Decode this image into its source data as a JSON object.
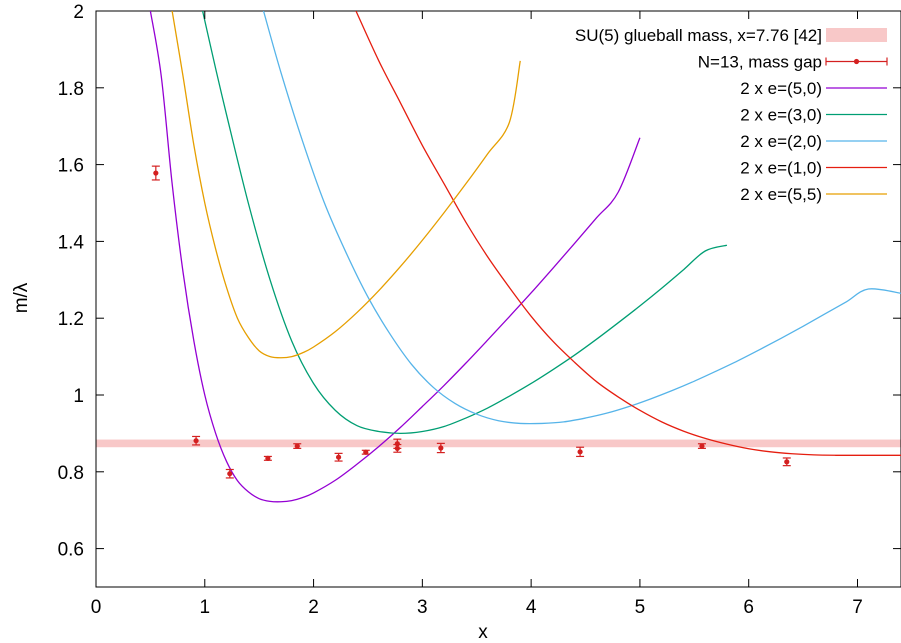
{
  "chart_data": {
    "type": "line",
    "xlabel": "x",
    "ylabel": "m/λ",
    "xlim": [
      0,
      7.4
    ],
    "ylim": [
      0.5,
      2.0
    ],
    "xticks": [
      0,
      1,
      2,
      3,
      4,
      5,
      6,
      7
    ],
    "yticks": [
      0.6,
      0.8,
      1.0,
      1.2,
      1.4,
      1.6,
      1.8,
      2.0
    ],
    "xtick_labels": [
      "0",
      "1",
      "2",
      "3",
      "4",
      "5",
      "6",
      "7"
    ],
    "ytick_labels": [
      "0.6",
      "0.8",
      "1",
      "1.2",
      "1.4",
      "1.6",
      "1.8",
      "2"
    ],
    "legend_position": "top-right",
    "band": {
      "name": "SU(5) glueball mass, x=7.76 [42]",
      "ymin": 0.864,
      "ymax": 0.884,
      "color": "#f8c8c8"
    },
    "points": {
      "name": "N=13, mass gap",
      "color": "#d42020",
      "x": [
        0.55,
        0.92,
        1.23,
        1.58,
        1.85,
        2.23,
        2.48,
        2.77,
        2.77,
        3.17,
        4.45,
        5.57,
        6.35
      ],
      "y": [
        1.578,
        0.881,
        0.795,
        0.835,
        0.867,
        0.838,
        0.851,
        0.873,
        0.861,
        0.862,
        0.852,
        0.867,
        0.826
      ],
      "err": [
        0.018,
        0.011,
        0.011,
        0.005,
        0.006,
        0.01,
        0.005,
        0.012,
        0.01,
        0.012,
        0.012,
        0.006,
        0.01
      ]
    },
    "series": [
      {
        "name": "2 x e=(5,0)",
        "color": "#9400d3",
        "x": [
          0.5,
          0.6,
          0.7,
          0.8,
          0.9,
          1.0,
          1.1,
          1.2,
          1.3,
          1.4,
          1.5,
          1.6,
          1.7,
          1.8,
          1.9,
          2.0,
          2.2,
          2.4,
          2.6,
          2.8,
          3.0,
          3.2,
          3.4,
          3.6,
          3.8,
          4.0,
          4.2,
          4.4,
          4.6,
          4.8,
          5.0
        ],
        "y": [
          2.0,
          1.83,
          1.55,
          1.32,
          1.14,
          1.0,
          0.9,
          0.827,
          0.777,
          0.748,
          0.73,
          0.723,
          0.722,
          0.725,
          0.733,
          0.745,
          0.778,
          0.82,
          0.866,
          0.916,
          0.97,
          1.025,
          1.083,
          1.143,
          1.204,
          1.266,
          1.33,
          1.395,
          1.461,
          1.528,
          1.67
        ]
      },
      {
        "name": "2 x e=(3,0)",
        "color": "#009e73",
        "x": [
          0.98,
          1.1,
          1.2,
          1.4,
          1.6,
          1.8,
          2.0,
          2.2,
          2.4,
          2.6,
          2.8,
          3.0,
          3.2,
          3.4,
          3.6,
          3.8,
          4.0,
          4.2,
          4.4,
          4.6,
          4.8,
          5.0,
          5.2,
          5.4,
          5.6,
          5.8
        ],
        "y": [
          2.0,
          1.85,
          1.73,
          1.5,
          1.3,
          1.14,
          1.03,
          0.96,
          0.92,
          0.905,
          0.9,
          0.905,
          0.918,
          0.94,
          0.966,
          0.997,
          1.03,
          1.066,
          1.104,
          1.145,
          1.188,
          1.232,
          1.278,
          1.326,
          1.375,
          1.39
        ]
      },
      {
        "name": "2 x e=(2,0)",
        "color": "#56b4e9",
        "x": [
          1.54,
          1.7,
          1.9,
          2.1,
          2.3,
          2.5,
          2.7,
          2.9,
          3.1,
          3.3,
          3.5,
          3.7,
          3.9,
          4.1,
          4.3,
          4.5,
          4.7,
          4.9,
          5.1,
          5.3,
          5.5,
          5.7,
          5.9,
          6.1,
          6.3,
          6.5,
          6.7,
          6.9,
          7.1,
          7.4
        ],
        "y": [
          2.0,
          1.84,
          1.66,
          1.5,
          1.37,
          1.255,
          1.16,
          1.08,
          1.02,
          0.978,
          0.95,
          0.933,
          0.926,
          0.926,
          0.93,
          0.94,
          0.953,
          0.97,
          0.99,
          1.012,
          1.036,
          1.062,
          1.089,
          1.118,
          1.148,
          1.179,
          1.211,
          1.243,
          1.276,
          1.265
        ]
      },
      {
        "name": "2 x e=(1,0)",
        "color": "#e51e10",
        "x": [
          2.39,
          2.6,
          2.8,
          3.0,
          3.2,
          3.4,
          3.6,
          3.8,
          4.0,
          4.2,
          4.4,
          4.6,
          4.8,
          5.0,
          5.2,
          5.4,
          5.6,
          5.8,
          6.0,
          6.2,
          6.4,
          6.6,
          6.8,
          7.0,
          7.2,
          7.4
        ],
        "y": [
          2.0,
          1.87,
          1.76,
          1.65,
          1.55,
          1.45,
          1.36,
          1.28,
          1.205,
          1.14,
          1.085,
          1.035,
          0.995,
          0.96,
          0.93,
          0.906,
          0.887,
          0.872,
          0.86,
          0.852,
          0.847,
          0.844,
          0.843,
          0.843,
          0.843,
          0.843
        ]
      },
      {
        "name": "2 x e=(5,5)",
        "color": "#e69f00",
        "x": [
          0.7,
          0.8,
          0.9,
          1.0,
          1.1,
          1.2,
          1.3,
          1.4,
          1.5,
          1.6,
          1.7,
          1.8,
          1.9,
          2.0,
          2.2,
          2.4,
          2.6,
          2.8,
          3.0,
          3.2,
          3.4,
          3.6,
          3.8,
          3.9
        ],
        "y": [
          2.0,
          1.83,
          1.65,
          1.5,
          1.38,
          1.28,
          1.2,
          1.15,
          1.115,
          1.1,
          1.097,
          1.1,
          1.11,
          1.125,
          1.165,
          1.215,
          1.272,
          1.335,
          1.403,
          1.475,
          1.55,
          1.628,
          1.71,
          1.87
        ]
      }
    ]
  }
}
